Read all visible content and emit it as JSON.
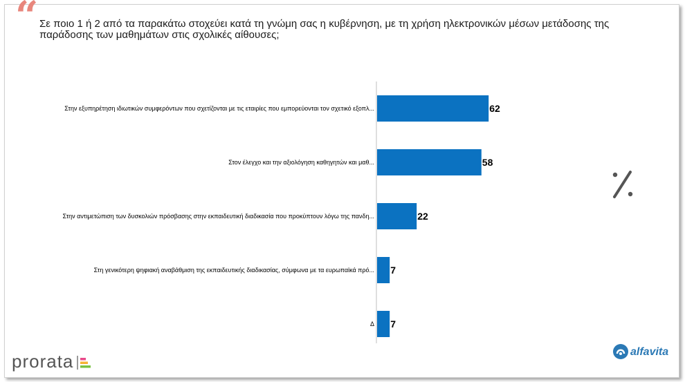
{
  "question": "Σε ποιο 1 ή 2 από τα παρακάτω στοχεύει κατά τη γνώμη σας η κυβέρνηση, με τη χρήση ηλεκτρονικών μέσων μετάδοσης της παράδοσης των μαθημάτων στις σχολικές αίθουσες;",
  "unit_symbol": "%",
  "colors": {
    "bar": "#0b72c1",
    "quote": "#e8867c",
    "alfavita": "#2b79b5"
  },
  "logos": {
    "prorata": "prorata",
    "alfavita": "alfavita"
  },
  "chart_data": {
    "type": "bar",
    "orientation": "horizontal",
    "categories": [
      "Στην εξυπηρέτηση ιδιωτικών συμφερόντων που σχετίζονται με τις εταιρίες που εμπορεύονται τον σχετικό εξοπλ...",
      "Στον έλεγχο και την αξιολόγηση καθηγητών και μαθ...",
      "Στην αντιμετώπιση των δυσκολιών πρόσβασης στην εκπαιδευτική διαδικασία που προκύπτουν λόγω της πανδη...",
      "Στη γενικότερη ψηφιακή αναβάθμιση της εκπαιδευτικής διαδικασίας, σύμφωνα με τα ευρωπαϊκά πρό...",
      "Δ"
    ],
    "values": [
      62,
      58,
      22,
      7,
      7
    ],
    "xlim": [
      0,
      100
    ],
    "grid": false
  }
}
